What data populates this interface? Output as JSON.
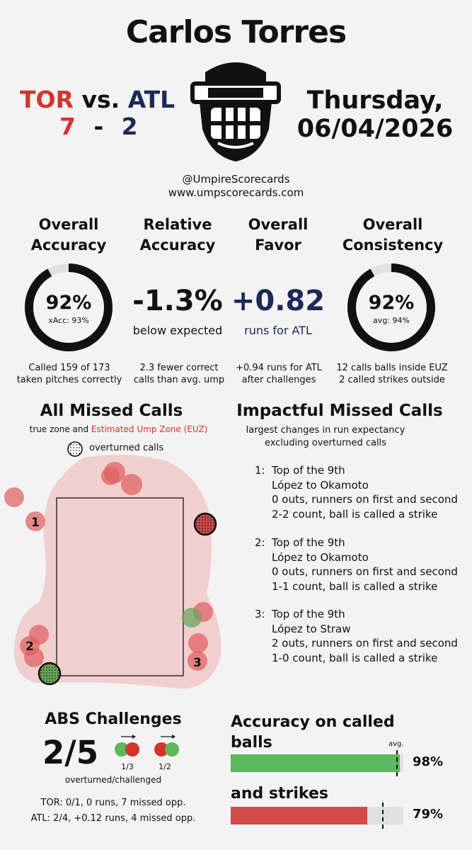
{
  "header": {
    "umpire_name": "Carlos Torres",
    "away_team": "TOR",
    "vs": "vs.",
    "home_team": "ATL",
    "away_score": "7",
    "dash": "-",
    "home_score": "2",
    "day": "Thursday,",
    "date": "06/04/2026",
    "twitter": "@UmpireScorecards",
    "website": "www.umpscorecards.com",
    "logo_icon": "umpire-mask-icon"
  },
  "metrics": {
    "accuracy": {
      "title1": "Overall",
      "title2": "Accuracy",
      "value": "92%",
      "sub": "xAcc: 93%",
      "note1": "Called 159 of 173",
      "note2": "taken pitches correctly",
      "ring_fraction": 0.92
    },
    "relative": {
      "title1": "Relative",
      "title2": "Accuracy",
      "value": "-1.3%",
      "sub": "below expected",
      "note1": "2.3 fewer correct",
      "note2": "calls than avg. ump"
    },
    "favor": {
      "title1": "Overall",
      "title2": "Favor",
      "value": "+0.82",
      "sub": "runs for ATL",
      "note1": "+0.94 runs for ATL",
      "note2": "after challenges"
    },
    "consistency": {
      "title1": "Overall",
      "title2": "Consistency",
      "value": "92%",
      "sub": "avg: 94%",
      "note1": "12 calls balls inside EUZ",
      "note2": "2 called strikes outside",
      "ring_fraction": 0.92
    }
  },
  "missed_calls": {
    "title": "All Missed Calls",
    "legend_prefix": "true zone and ",
    "legend_euz": "Estimated Ump Zone (EUZ)",
    "overturned_label": "overturned calls",
    "labels": [
      "1",
      "2",
      "3"
    ]
  },
  "impactful": {
    "title": "Impactful Missed Calls",
    "sub1": "largest changes in run expectancy",
    "sub2": "excluding overturned calls",
    "items": [
      {
        "num": "1:",
        "inning": "Top of the 9th",
        "matchup": "López to Okamoto",
        "situation": "0 outs, runners on first and second",
        "call": "2-2 count, ball is called a strike"
      },
      {
        "num": "2:",
        "inning": "Top of the 9th",
        "matchup": "López to Okamoto",
        "situation": "0 outs, runners on first and second",
        "call": "1-1 count, ball is called a strike"
      },
      {
        "num": "3:",
        "inning": "Top of the 9th",
        "matchup": "López to Straw",
        "situation": "2 outs, runners on first and second",
        "call": "1-0 count, ball is called a strike"
      }
    ]
  },
  "abs": {
    "title": "ABS Challenges",
    "value": "2/5",
    "sub": "overturned/challenged",
    "icon1_label": "1/3",
    "icon2_label": "1/2",
    "tor_line": "TOR: 0/1, 0 runs, 7 missed opp.",
    "atl_line": "ATL: 2/4, +0.12 runs, 4 missed opp."
  },
  "called_accuracy": {
    "title1": "Accuracy on called",
    "title2": "balls",
    "balls_value": "98%",
    "balls_fraction": 0.98,
    "avg_label": "avg.",
    "strikes_title": "and strikes",
    "strikes_value": "79%",
    "strikes_fraction": 0.79
  },
  "colors": {
    "red": "#d6332c",
    "navy": "#1b2a57",
    "green": "#5cb85c",
    "bar_red": "#d04a48",
    "euz": "#f0c8c8",
    "missed": "#e06060"
  }
}
